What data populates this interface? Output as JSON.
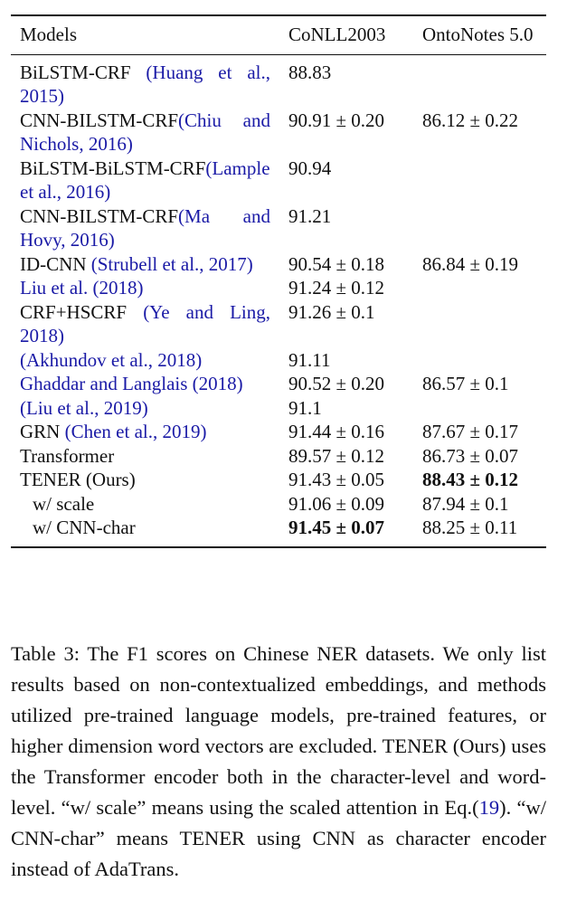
{
  "table": {
    "header": [
      "Models",
      "CoNLL2003",
      "OntoNotes 5.0"
    ],
    "rows": [
      {
        "name": "BiLSTM-CRF ",
        "cite": "(Huang et al., 2015)",
        "conll": "88.83"
      },
      {
        "name": "CNN-BILSTM-CRF",
        "cite": "(Chiu and Nichols, 2016)",
        "conll": "90.91 ± 0.20",
        "ontonotes": "86.12 ± 0.22"
      },
      {
        "name": "BiLSTM-BiLSTM-CRF",
        "cite": "(Lample et al., 2016)",
        "conll": "90.94"
      },
      {
        "name": "CNN-BILSTM-CRF",
        "cite": "(Ma and Hovy, 2016)",
        "conll": "91.21"
      },
      {
        "name": "ID-CNN ",
        "cite": "(Strubell et al., 2017)",
        "conll": "90.54 ± 0.18",
        "ontonotes": "86.84 ± 0.19"
      },
      {
        "cite": "Liu et al. (2018)",
        "conll": "91.24 ± 0.12"
      },
      {
        "name": "CRF+HSCRF ",
        "cite": "(Ye and Ling, 2018)",
        "conll": "91.26 ± 0.1"
      },
      {
        "cite": "(Akhundov et al., 2018)",
        "conll": "91.11"
      },
      {
        "cite": "Ghaddar and Langlais (2018)",
        "conll": "90.52 ± 0.20",
        "ontonotes": "86.57 ± 0.1"
      },
      {
        "cite": "(Liu et al., 2019)",
        "conll": "91.1"
      },
      {
        "name": "GRN ",
        "cite": "(Chen et al., 2019)",
        "conll": "91.44 ± 0.16",
        "ontonotes": "87.67 ± 0.17"
      },
      {
        "name": "Transformer",
        "conll": "89.57 ± 0.12",
        "ontonotes": "86.73 ± 0.07"
      },
      {
        "name": "TENER (Ours)",
        "conll": "91.43 ± 0.05",
        "ontonotes": "88.43 ± 0.12",
        "bold": "ontonotes"
      },
      {
        "name": "w/ scale",
        "conll": "91.06 ± 0.09",
        "ontonotes": "87.94 ± 0.1",
        "indent": true
      },
      {
        "name": "w/ CNN-char",
        "conll": "91.45 ± 0.07",
        "ontonotes": "88.25 ± 0.11",
        "bold": "conll",
        "indent": true
      }
    ]
  },
  "caption": {
    "before": "Table 3: The F1 scores on Chinese NER datasets. We only list results based on non-contextualized embeddings, and methods utilized pre-trained language models, pre-trained features, or higher dimension word vectors are excluded. TENER (Ours) uses the Transformer encoder both in the character-level and word-level. “w/ scale” means using the scaled attention in Eq.(",
    "ref": "19",
    "after": "). “w/ CNN-char” means TENER using CNN as character encoder instead of AdaTrans."
  }
}
